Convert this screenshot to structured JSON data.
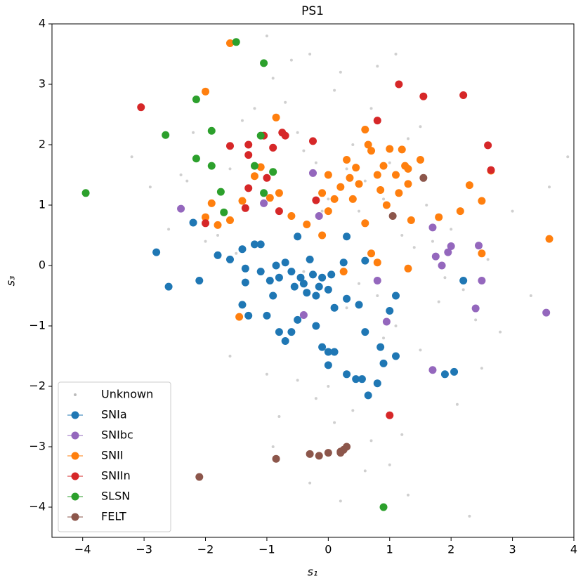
{
  "chart_data": {
    "type": "scatter",
    "title": "PS1",
    "xlabel": "s₁",
    "ylabel": "s₃",
    "xlim": [
      -4.5,
      4
    ],
    "ylim": [
      -4.5,
      4
    ],
    "xticks": [
      {
        "value": -4,
        "label": "−4"
      },
      {
        "value": -3,
        "label": "−3"
      },
      {
        "value": -2,
        "label": "−2"
      },
      {
        "value": -1,
        "label": "−1"
      },
      0,
      1,
      2,
      3,
      4
    ],
    "yticks": [
      {
        "value": -4,
        "label": "−4"
      },
      {
        "value": -3,
        "label": "−3"
      },
      {
        "value": -2,
        "label": "−2"
      },
      {
        "value": -1,
        "label": "−1"
      },
      0,
      1,
      2,
      3,
      4
    ],
    "legend": "lower left",
    "series": [
      {
        "name": "Unknown",
        "color": "#bbbbbb",
        "x": [
          -3.2,
          -2.9,
          -2.6,
          -2.4,
          -2.2,
          -2.0,
          -1.8,
          -1.6,
          -1.5,
          -1.4,
          -1.2,
          -1.0,
          -0.9,
          -0.7,
          -0.6,
          -0.5,
          -0.4,
          -0.3,
          -0.2,
          -0.1,
          0.0,
          0.1,
          0.2,
          0.3,
          0.4,
          0.5,
          0.6,
          0.7,
          0.8,
          0.9,
          1.0,
          1.1,
          1.2,
          1.3,
          1.4,
          1.5,
          1.6,
          1.7,
          1.8,
          1.9,
          2.0,
          2.2,
          2.4,
          2.6,
          2.8,
          3.0,
          3.3,
          3.6,
          3.9,
          -0.5,
          -0.2,
          0.1,
          0.4,
          0.7,
          1.0,
          -1.0,
          -0.8,
          -0.3,
          0.2,
          0.6,
          1.2,
          1.5,
          2.1,
          2.5,
          -1.6,
          -0.9,
          0.0,
          0.5,
          0.9,
          1.3,
          -0.4,
          0.3,
          0.8,
          1.1,
          -2.3,
          2.3
        ],
        "values": [
          1.8,
          1.3,
          0.6,
          1.5,
          2.2,
          0.4,
          0.5,
          1.6,
          0.2,
          2.4,
          2.6,
          3.8,
          3.1,
          2.7,
          3.4,
          2.2,
          1.9,
          3.5,
          1.7,
          0.9,
          1.1,
          2.9,
          3.2,
          1.6,
          2.0,
          0.9,
          1.4,
          2.6,
          3.3,
          1.1,
          1.7,
          3.5,
          0.5,
          2.1,
          0.3,
          2.3,
          1.0,
          0.4,
          -0.6,
          -0.2,
          0.6,
          -0.4,
          -0.9,
          0.1,
          -1.1,
          0.9,
          -0.5,
          1.3,
          1.8,
          -1.9,
          -2.2,
          -2.6,
          -2.4,
          -2.9,
          -3.3,
          -1.8,
          -2.5,
          -3.6,
          -3.9,
          -3.4,
          -2.8,
          -1.4,
          -2.3,
          -1.7,
          -1.5,
          -3.0,
          -2.0,
          -0.3,
          -1.2,
          -3.8,
          -0.1,
          -0.7,
          -0.5,
          -1.0,
          1.4,
          -4.15
        ]
      },
      {
        "name": "SNIa",
        "color": "#1f77b4",
        "x": [
          -2.8,
          -2.6,
          -2.1,
          -2.2,
          -1.8,
          -1.6,
          -1.4,
          -1.35,
          -1.35,
          -1.2,
          -1.1,
          -1.1,
          -1.4,
          -1.3,
          -1.0,
          -0.9,
          -0.8,
          -0.7,
          -0.6,
          -0.5,
          -0.5,
          -0.3,
          -0.4,
          -0.2,
          -0.1,
          0.0,
          0.1,
          -0.2,
          -0.1,
          0.0,
          0.1,
          0.0,
          0.3,
          0.45,
          0.55,
          0.65,
          0.8,
          0.9,
          0.85,
          1.1,
          1.1,
          1.0,
          0.6,
          0.5,
          0.3,
          0.3,
          0.6,
          0.25,
          1.9,
          2.05,
          2.2,
          -0.8,
          -0.6,
          -0.7,
          -0.45,
          -0.35,
          -0.55,
          -0.25,
          -0.15,
          0.05,
          -0.95,
          -0.85
        ],
        "values": [
          0.22,
          -0.35,
          -0.25,
          0.71,
          0.17,
          0.1,
          0.27,
          -0.05,
          -0.28,
          0.35,
          0.35,
          -0.1,
          -0.65,
          -0.83,
          -0.83,
          -0.5,
          -1.1,
          -1.25,
          -1.1,
          -0.9,
          0.48,
          0.1,
          -0.3,
          -0.5,
          -0.2,
          -0.4,
          -0.7,
          -1.0,
          -1.35,
          -1.43,
          -1.43,
          -1.65,
          -1.8,
          -1.88,
          -1.88,
          -2.15,
          -1.95,
          -1.62,
          -1.35,
          -1.5,
          -0.5,
          -0.75,
          -1.1,
          -0.65,
          -0.55,
          0.48,
          0.08,
          0.05,
          -1.8,
          -1.76,
          -0.25,
          -0.2,
          -0.1,
          0.05,
          -0.2,
          -0.45,
          -0.35,
          -0.15,
          -0.35,
          -0.15,
          -0.25,
          0.0
        ]
      },
      {
        "name": "SNIbc",
        "color": "#9467bd",
        "x": [
          -2.4,
          -1.05,
          -0.25,
          -0.15,
          -0.4,
          0.8,
          0.95,
          1.7,
          1.75,
          1.85,
          1.95,
          2.0,
          2.45,
          2.5,
          2.4,
          3.55,
          1.7
        ],
        "values": [
          0.94,
          1.03,
          1.53,
          0.82,
          -0.82,
          -0.25,
          -0.93,
          0.63,
          0.15,
          0.0,
          0.22,
          0.32,
          0.33,
          -0.25,
          -0.71,
          -0.78,
          -1.73
        ]
      },
      {
        "name": "SNII",
        "color": "#ff7f0e",
        "x": [
          -1.6,
          -2.0,
          -0.85,
          -1.9,
          -2.0,
          -1.8,
          -1.6,
          -1.4,
          -1.2,
          -1.1,
          -0.95,
          -0.8,
          -0.6,
          -0.35,
          -0.1,
          -0.1,
          0.0,
          0.1,
          0.2,
          0.3,
          0.35,
          0.4,
          0.5,
          0.6,
          0.65,
          0.7,
          0.8,
          0.85,
          0.9,
          1.0,
          1.1,
          1.15,
          1.2,
          1.25,
          1.3,
          1.35,
          1.5,
          1.3,
          0.7,
          0.8,
          0.25,
          1.3,
          1.8,
          2.15,
          2.3,
          2.5,
          2.5,
          2.65,
          3.6,
          -1.45,
          0.6,
          0.0,
          0.45,
          0.95
        ],
        "values": [
          3.68,
          2.88,
          2.45,
          1.03,
          0.8,
          0.67,
          0.75,
          1.07,
          1.48,
          1.63,
          1.12,
          1.2,
          0.82,
          0.68,
          0.5,
          1.2,
          1.5,
          1.1,
          1.3,
          1.75,
          1.45,
          1.1,
          1.35,
          2.25,
          2.0,
          1.9,
          1.5,
          1.25,
          1.65,
          1.93,
          1.5,
          1.2,
          1.92,
          1.65,
          1.35,
          0.75,
          1.75,
          1.6,
          0.2,
          0.05,
          -0.1,
          -0.05,
          0.8,
          0.9,
          1.33,
          1.07,
          0.2,
          1.57,
          0.44,
          -0.85,
          0.7,
          0.9,
          1.62,
          1.0
        ]
      },
      {
        "name": "SNIIn",
        "color": "#d62728",
        "x": [
          -3.05,
          -1.6,
          -1.3,
          -1.3,
          -1.3,
          -1.35,
          -1.05,
          -1.0,
          -0.9,
          -0.75,
          -0.7,
          -0.8,
          -0.25,
          -0.2,
          0.8,
          1.15,
          1.55,
          2.2,
          2.6,
          2.65,
          1.0,
          -2.0
        ],
        "values": [
          2.62,
          1.98,
          2.0,
          1.83,
          1.28,
          0.95,
          2.15,
          1.45,
          1.95,
          2.2,
          2.15,
          0.9,
          2.06,
          1.08,
          2.4,
          3.0,
          2.8,
          2.82,
          1.99,
          1.58,
          -2.48,
          0.7
        ]
      },
      {
        "name": "SLSN",
        "color": "#2ca02c",
        "x": [
          -1.5,
          -1.05,
          -2.15,
          -2.65,
          -1.9,
          -1.1,
          -2.15,
          -1.9,
          -1.2,
          -0.9,
          -1.75,
          -1.05,
          -1.7,
          -3.95,
          0.9
        ],
        "values": [
          3.7,
          3.35,
          2.75,
          2.16,
          2.23,
          2.15,
          1.77,
          1.65,
          1.65,
          1.55,
          1.22,
          1.2,
          0.88,
          1.2,
          -4.0
        ]
      },
      {
        "name": "FELT",
        "color": "#8c564b",
        "x": [
          -2.1,
          -0.85,
          -0.3,
          -0.15,
          0.0,
          0.2,
          0.25,
          0.3,
          0.2,
          1.55,
          1.05
        ],
        "values": [
          -3.5,
          -3.2,
          -3.12,
          -3.15,
          -3.1,
          -3.08,
          -3.05,
          -3.0,
          -3.1,
          1.45,
          0.82
        ]
      }
    ]
  }
}
